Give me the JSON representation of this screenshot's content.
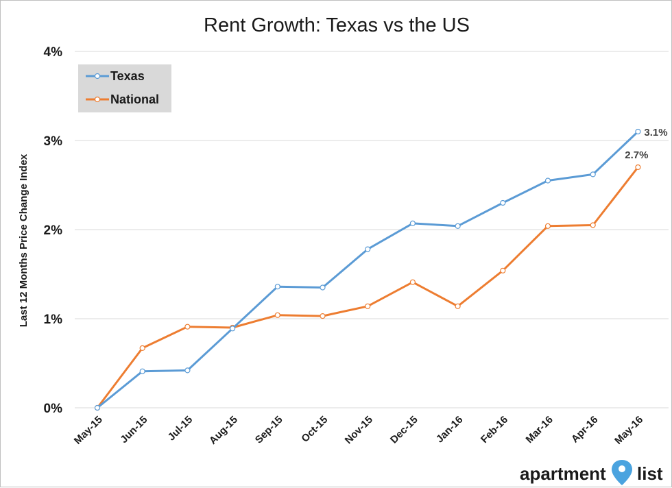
{
  "chart_data": {
    "type": "line",
    "title": "Rent Growth: Texas vs the US",
    "ylabel": "Last 12 Months Price Change Index",
    "xlabel": "",
    "categories": [
      "May-15",
      "Jun-15",
      "Jul-15",
      "Aug-15",
      "Sep-15",
      "Oct-15",
      "Nov-15",
      "Dec-15",
      "Jan-16",
      "Feb-16",
      "Mar-16",
      "Apr-16",
      "May-16"
    ],
    "yticks": [
      "0%",
      "1%",
      "2%",
      "3%",
      "4%"
    ],
    "ylim": [
      0,
      4
    ],
    "grid": true,
    "legend_position": "top-left",
    "series": [
      {
        "name": "Texas",
        "color": "#5b9bd5",
        "values": [
          0.0,
          0.41,
          0.42,
          0.89,
          1.36,
          1.35,
          1.78,
          2.07,
          2.04,
          2.3,
          2.55,
          2.62,
          3.1
        ],
        "end_label": "3.1%"
      },
      {
        "name": "National",
        "color": "#ed7d31",
        "values": [
          0.0,
          0.67,
          0.91,
          0.9,
          1.04,
          1.03,
          1.14,
          1.41,
          1.14,
          1.54,
          2.04,
          2.05,
          2.7
        ],
        "end_label": "2.7%"
      }
    ]
  },
  "logo": {
    "text_left": "apartment",
    "text_right": "list",
    "pin_color": "#4aa3df"
  }
}
